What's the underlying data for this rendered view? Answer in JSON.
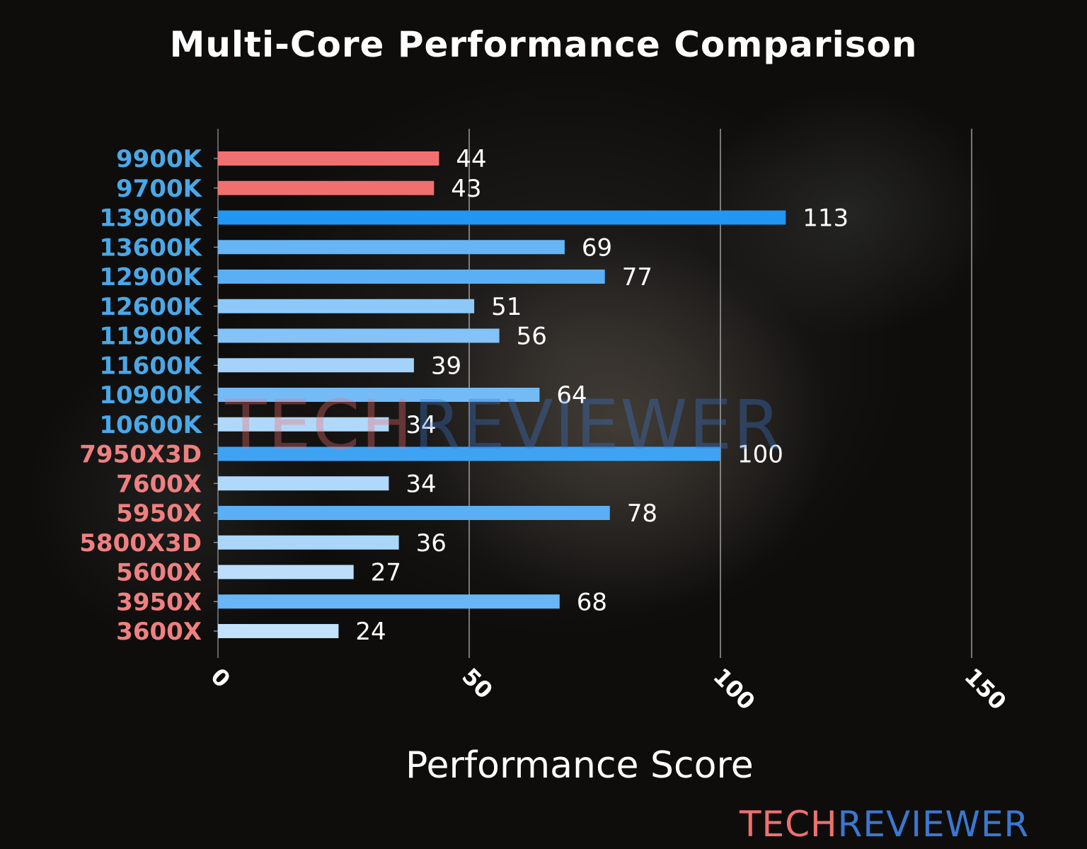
{
  "chart_data": {
    "type": "bar",
    "orientation": "horizontal",
    "title": "Multi-Core Performance Comparison",
    "xlabel": "Performance Score",
    "ylabel": "",
    "xlim": [
      0,
      150
    ],
    "xticks": [
      "0",
      "50",
      "100",
      "150"
    ],
    "grid": "vertical",
    "categories": [
      "9900K",
      "9700K",
      "13900K",
      "13600K",
      "12900K",
      "12600K",
      "11900K",
      "11600K",
      "10900K",
      "10600K",
      "7950X3D",
      "7600X",
      "5950X",
      "5800X3D",
      "5600X",
      "3950X",
      "3600X"
    ],
    "values": [
      44,
      43,
      113,
      69,
      77,
      51,
      56,
      39,
      64,
      34,
      100,
      34,
      78,
      36,
      27,
      68,
      24
    ],
    "label_colors": [
      "#4aa8e8",
      "#4aa8e8",
      "#4aa8e8",
      "#4aa8e8",
      "#4aa8e8",
      "#4aa8e8",
      "#4aa8e8",
      "#4aa8e8",
      "#4aa8e8",
      "#4aa8e8",
      "#f08080",
      "#f08080",
      "#f08080",
      "#f08080",
      "#f08080",
      "#f08080",
      "#f08080"
    ],
    "bar_colors": [
      "#f07070",
      "#f07070",
      "#2196f3",
      "#66b5f5",
      "#5aaff5",
      "#8ec8f8",
      "#84c2f7",
      "#a4d2f9",
      "#74bbf6",
      "#b0d8fa",
      "#3fa3f4",
      "#b0d8fa",
      "#5aaff5",
      "#aad6fa",
      "#bcdefb",
      "#68b6f5",
      "#c2e1fc"
    ]
  },
  "watermark": {
    "part1": "TECH",
    "part2": "REVIEWER"
  },
  "logo": {
    "part1": "TECH",
    "part2": "REVIEWER"
  }
}
